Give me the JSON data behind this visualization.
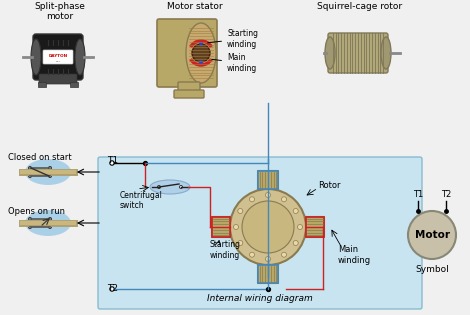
{
  "bg_color": "#f0f0f0",
  "diagram_bg": "#c8e4f0",
  "tan_color": "#b8a868",
  "dark_tan": "#8a7a50",
  "wire_blue": "#4488bb",
  "wire_red": "#cc2222",
  "light_blue": "#aad0e8",
  "motor_dark": "#222222",
  "motor_gray": "#666666",
  "rotor_fill": "#d0c090",
  "slot_fill": "#e8d8a8",
  "symbol_fill": "#c8c0a8",
  "top_labels": [
    "Split-phase\nmotor",
    "Motor stator",
    "Squirrel-cage rotor"
  ],
  "bottom_labels": {
    "closed_on_start": "Closed on start",
    "opens_on_run": "Opens on run",
    "centrifugal_switch": "Centrifugal\nswitch",
    "starting_winding": "Starting\nwinding",
    "main_winding": "Main\nwinding",
    "rotor": "Rotor",
    "internal_wiring": "Internal wiring diagram",
    "symbol": "Symbol",
    "motor": "Motor"
  }
}
